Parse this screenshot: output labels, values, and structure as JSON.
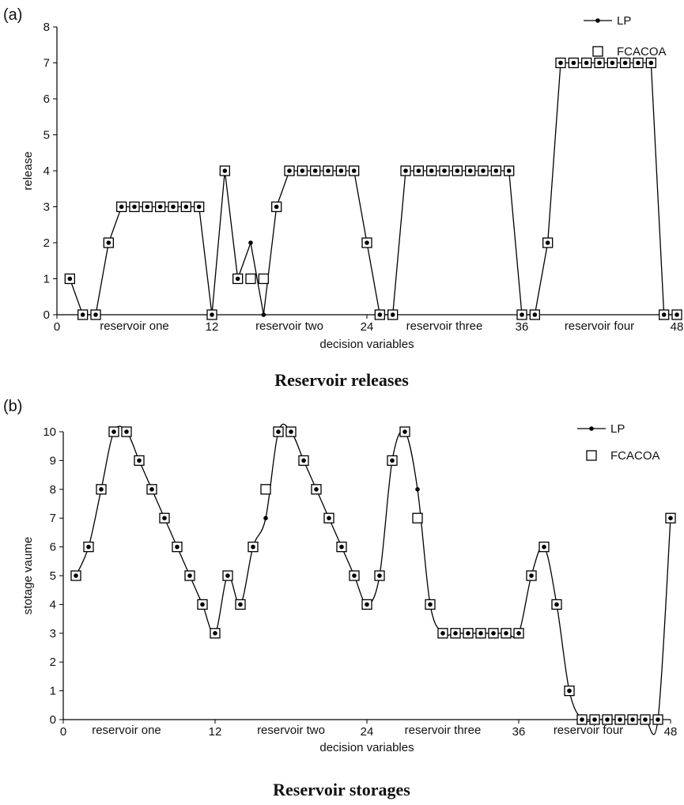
{
  "chart_data": [
    {
      "type": "line",
      "panel_label": "(a)",
      "caption": "Reservoir releases",
      "xlabel": "decision variables",
      "ylabel": "release",
      "xlim": [
        0,
        48
      ],
      "ylim": [
        0,
        8
      ],
      "xticks": [
        0,
        12,
        24,
        36,
        48
      ],
      "yticks": [
        0,
        1,
        2,
        3,
        4,
        5,
        6,
        7,
        8
      ],
      "grid": false,
      "legend_position": "top-right",
      "section_labels": [
        {
          "text": "reservoir one",
          "x": 6
        },
        {
          "text": "reservoir two",
          "x": 18
        },
        {
          "text": "reservoir three",
          "x": 30
        },
        {
          "text": "reservoir four",
          "x": 42
        }
      ],
      "series": [
        {
          "name": "LP",
          "style": "line-dot",
          "smooth": false,
          "x": [
            1,
            2,
            3,
            4,
            5,
            6,
            7,
            8,
            9,
            10,
            11,
            12,
            13,
            14,
            15,
            16,
            17,
            18,
            19,
            20,
            21,
            22,
            23,
            24,
            25,
            26,
            27,
            28,
            29,
            30,
            31,
            32,
            33,
            34,
            35,
            36,
            37,
            38,
            39,
            40,
            41,
            42,
            43,
            44,
            45,
            46,
            47,
            48
          ],
          "values": [
            1,
            0,
            0,
            2,
            3,
            3,
            3,
            3,
            3,
            3,
            3,
            0,
            4,
            1,
            2,
            0,
            3,
            4,
            4,
            4,
            4,
            4,
            4,
            2,
            0,
            0,
            4,
            4,
            4,
            4,
            4,
            4,
            4,
            4,
            4,
            0,
            0,
            2,
            7,
            7,
            7,
            7,
            7,
            7,
            7,
            7,
            0,
            0
          ]
        },
        {
          "name": "FCACOA",
          "style": "square",
          "x": [
            1,
            2,
            3,
            4,
            5,
            6,
            7,
            8,
            9,
            10,
            11,
            12,
            13,
            14,
            15,
            16,
            17,
            18,
            19,
            20,
            21,
            22,
            23,
            24,
            25,
            26,
            27,
            28,
            29,
            30,
            31,
            32,
            33,
            34,
            35,
            36,
            37,
            38,
            39,
            40,
            41,
            42,
            43,
            44,
            45,
            46,
            47,
            48
          ],
          "values": [
            1,
            0,
            0,
            2,
            3,
            3,
            3,
            3,
            3,
            3,
            3,
            0,
            4,
            1,
            1,
            1,
            3,
            4,
            4,
            4,
            4,
            4,
            4,
            2,
            0,
            0,
            4,
            4,
            4,
            4,
            4,
            4,
            4,
            4,
            4,
            0,
            0,
            2,
            7,
            7,
            7,
            7,
            7,
            7,
            7,
            7,
            0,
            0
          ]
        }
      ]
    },
    {
      "type": "line",
      "panel_label": "(b)",
      "caption": "Reservoir storages",
      "xlabel": "decision variables",
      "ylabel": "stotage vaume",
      "xlim": [
        0,
        48
      ],
      "ylim": [
        0,
        10
      ],
      "xticks": [
        0,
        12,
        24,
        36,
        48
      ],
      "yticks": [
        0,
        1,
        2,
        3,
        4,
        5,
        6,
        7,
        8,
        9,
        10
      ],
      "grid": false,
      "legend_position": "top-right",
      "section_labels": [
        {
          "text": "reservoir one",
          "x": 5
        },
        {
          "text": "reservoir two",
          "x": 18
        },
        {
          "text": "reservoir three",
          "x": 30
        },
        {
          "text": "reservoir four",
          "x": 41.5
        }
      ],
      "series": [
        {
          "name": "LP",
          "style": "line-dot",
          "smooth": true,
          "x": [
            1,
            2,
            3,
            4,
            5,
            6,
            7,
            8,
            9,
            10,
            11,
            12,
            13,
            14,
            15,
            16,
            17,
            18,
            19,
            20,
            21,
            22,
            23,
            24,
            25,
            26,
            27,
            28,
            29,
            30,
            31,
            32,
            33,
            34,
            35,
            36,
            37,
            38,
            39,
            40,
            41,
            42,
            43,
            44,
            45,
            46,
            47,
            48
          ],
          "values": [
            5,
            6,
            8,
            10,
            10,
            9,
            8,
            7,
            6,
            5,
            4,
            3,
            5,
            4,
            6,
            7,
            10,
            10,
            9,
            8,
            7,
            6,
            5,
            4,
            5,
            9,
            10,
            8,
            4,
            3,
            3,
            3,
            3,
            3,
            3,
            3,
            5,
            6,
            4,
            1,
            0,
            0,
            0,
            0,
            0,
            0,
            0,
            7
          ]
        },
        {
          "name": "FCACOA",
          "style": "square",
          "x": [
            1,
            2,
            3,
            4,
            5,
            6,
            7,
            8,
            9,
            10,
            11,
            12,
            13,
            14,
            15,
            16,
            17,
            18,
            19,
            20,
            21,
            22,
            23,
            24,
            25,
            26,
            27,
            28,
            29,
            30,
            31,
            32,
            33,
            34,
            35,
            36,
            37,
            38,
            39,
            40,
            41,
            42,
            43,
            44,
            45,
            46,
            47,
            48
          ],
          "values": [
            5,
            6,
            8,
            10,
            10,
            9,
            8,
            7,
            6,
            5,
            4,
            3,
            5,
            4,
            6,
            8,
            10,
            10,
            9,
            8,
            7,
            6,
            5,
            4,
            5,
            9,
            10,
            7,
            4,
            3,
            3,
            3,
            3,
            3,
            3,
            3,
            5,
            6,
            4,
            1,
            0,
            0,
            0,
            0,
            0,
            0,
            0,
            7
          ]
        }
      ]
    }
  ]
}
